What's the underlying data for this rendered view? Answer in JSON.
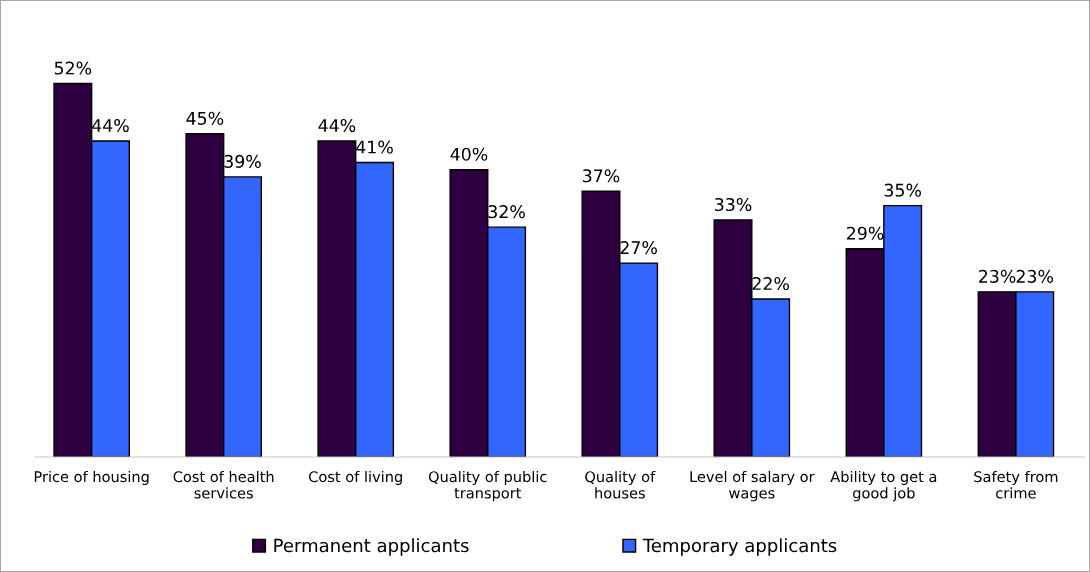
{
  "chart_data": {
    "type": "bar",
    "categories": [
      "Price of housing",
      "Cost of health\nservices",
      "Cost of living",
      "Quality of public\ntransport",
      "Quality of\nhouses",
      "Level of salary or\nwages",
      "Ability to get a\ngood job",
      "Safety from\ncrime"
    ],
    "series": [
      {
        "name": "Permanent applicants",
        "color": "#2e0040",
        "values": [
          52,
          45,
          44,
          40,
          37,
          33,
          29,
          23
        ],
        "value_labels": [
          "52%",
          "45%",
          "44%",
          "40%",
          "37%",
          "33%",
          "29%",
          "23%"
        ]
      },
      {
        "name": "Temporary applicants",
        "color": "#3366ff",
        "values": [
          44,
          39,
          41,
          32,
          27,
          22,
          35,
          23
        ],
        "value_labels": [
          "44%",
          "39%",
          "41%",
          "32%",
          "27%",
          "22%",
          "35%",
          "23%"
        ]
      }
    ],
    "tick_labels": "x",
    "grid": false,
    "legend": "bottom"
  }
}
